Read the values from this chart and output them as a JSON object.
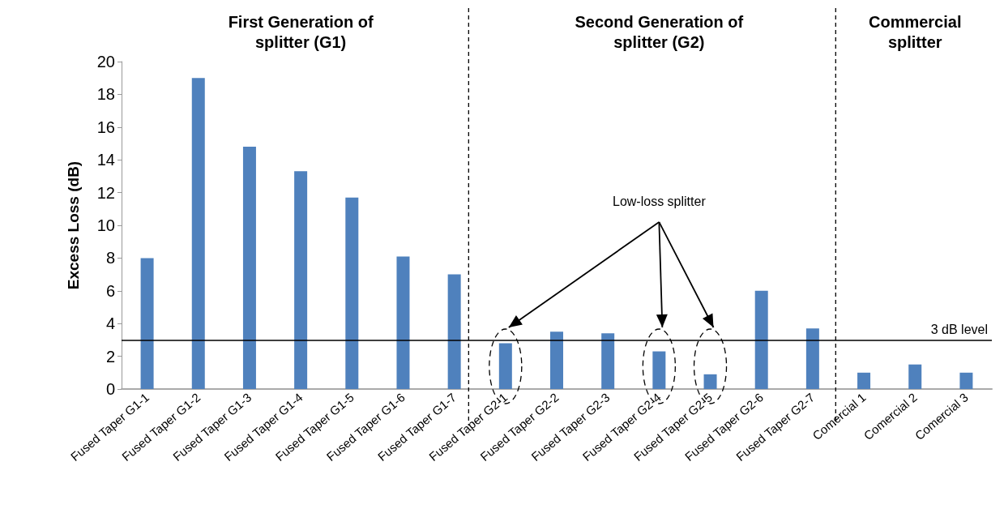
{
  "chart_data": {
    "type": "bar",
    "ylabel": "Excess Loss (dB)",
    "categories": [
      "Fused Taper G1-1",
      "Fused Taper G1-2",
      "Fused Taper G1-3",
      "Fused Taper G1-4",
      "Fused Taper G1-5",
      "Fused Taper G1-6",
      "Fused Taper G1-7",
      "Fused Taper G2-1",
      "Fused Taper G2-2",
      "Fused Taper G2-3",
      "Fused Taper G2-4",
      "Fused Taper G2-5",
      "Fused Taper G2-6",
      "Fused Taper G2-7",
      "Comercial 1",
      "Comercial 2",
      "Comercial 3"
    ],
    "values": [
      8.0,
      19.0,
      14.8,
      13.3,
      11.7,
      8.1,
      7.0,
      2.8,
      3.5,
      3.4,
      2.3,
      0.9,
      6.0,
      3.7,
      1.0,
      1.5,
      1.0
    ],
    "color": "#4f81bd",
    "ylim": [
      0,
      20
    ],
    "yticks": [
      0,
      2,
      4,
      6,
      8,
      10,
      12,
      14,
      16,
      18,
      20
    ],
    "grid": false,
    "ref_lines": [
      {
        "axis": "y",
        "value": 3,
        "label": "3 dB level",
        "color": "#000000",
        "line_style": "solid"
      }
    ],
    "annotations": [
      "First Generation of splitter (G1)",
      "Second Generation of splitter (G2)",
      "Commercial splitter",
      "Low-loss splitter"
    ]
  }
}
